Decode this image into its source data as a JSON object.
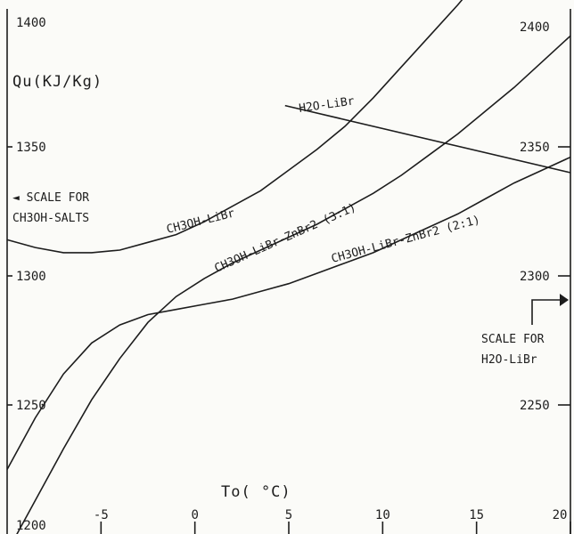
{
  "chart_data": {
    "type": "line",
    "title": "",
    "xlabel": "To( °C)",
    "ylabel": "Qu(KJ/Kg)",
    "xlim": [
      -10,
      20
    ],
    "ylim_left": [
      1200,
      1400
    ],
    "ylim_right": [
      2200,
      2400
    ],
    "x_ticks": [
      "-5",
      "0",
      "5",
      "10",
      "15",
      "20"
    ],
    "y_ticks_left": [
      "1400",
      "1350",
      "1300",
      "1250",
      "1200"
    ],
    "y_ticks_right": [
      "2400",
      "2350",
      "2300",
      "2250"
    ],
    "left_scale_note": [
      "◄ SCALE FOR",
      "CH3OH-SALTS"
    ],
    "right_scale_note": [
      "SCALE FOR",
      "H2O-LiBr"
    ],
    "grid": false,
    "series": [
      {
        "name": "CH3OH-LiBr",
        "axis": "left",
        "x": [
          -10,
          -8.5,
          -7,
          -5.5,
          -4,
          -2.5,
          -1,
          0.5,
          2,
          3.5,
          5,
          6.5,
          8,
          9.5,
          11,
          12.5,
          14,
          15.5
        ],
        "y": [
          1314,
          1311,
          1309,
          1309,
          1310,
          1313,
          1316,
          1321,
          1327,
          1333,
          1341,
          1349,
          1358,
          1369,
          1381,
          1393,
          1405,
          1418
        ]
      },
      {
        "name": "CH3OH-LiBr-ZnBr2 (3:1)",
        "axis": "left",
        "x": [
          -10,
          -8.5,
          -7,
          -5.5,
          -4,
          -2.5,
          -1,
          0.5,
          2,
          3.5,
          5,
          6.5,
          8,
          9.5,
          11,
          12.5,
          14,
          15.5,
          17,
          18.5,
          20
        ],
        "y": [
          1193,
          1213,
          1233,
          1252,
          1268,
          1282,
          1292,
          1299,
          1305,
          1310,
          1315,
          1320,
          1326,
          1332,
          1339,
          1347,
          1355,
          1364,
          1373,
          1383,
          1393
        ]
      },
      {
        "name": "CH3OH-LiBr-ZnBr2 (2:1)",
        "axis": "left",
        "x": [
          -10,
          -8.5,
          -7,
          -5.5,
          -4,
          -2.5,
          -1,
          0.5,
          2,
          3.5,
          5,
          6.5,
          8,
          9.5,
          11,
          12.5,
          14,
          15.5,
          17,
          18.5,
          20
        ],
        "y": [
          1225,
          1245,
          1262,
          1274,
          1281,
          1285,
          1287,
          1289,
          1291,
          1294,
          1297,
          1301,
          1305,
          1309,
          1314,
          1319,
          1324,
          1330,
          1336,
          1341,
          1346
        ]
      },
      {
        "name": "H2O-LiBr",
        "axis": "right",
        "x": [
          4.8,
          20
        ],
        "y": [
          2366,
          2340
        ]
      }
    ]
  }
}
